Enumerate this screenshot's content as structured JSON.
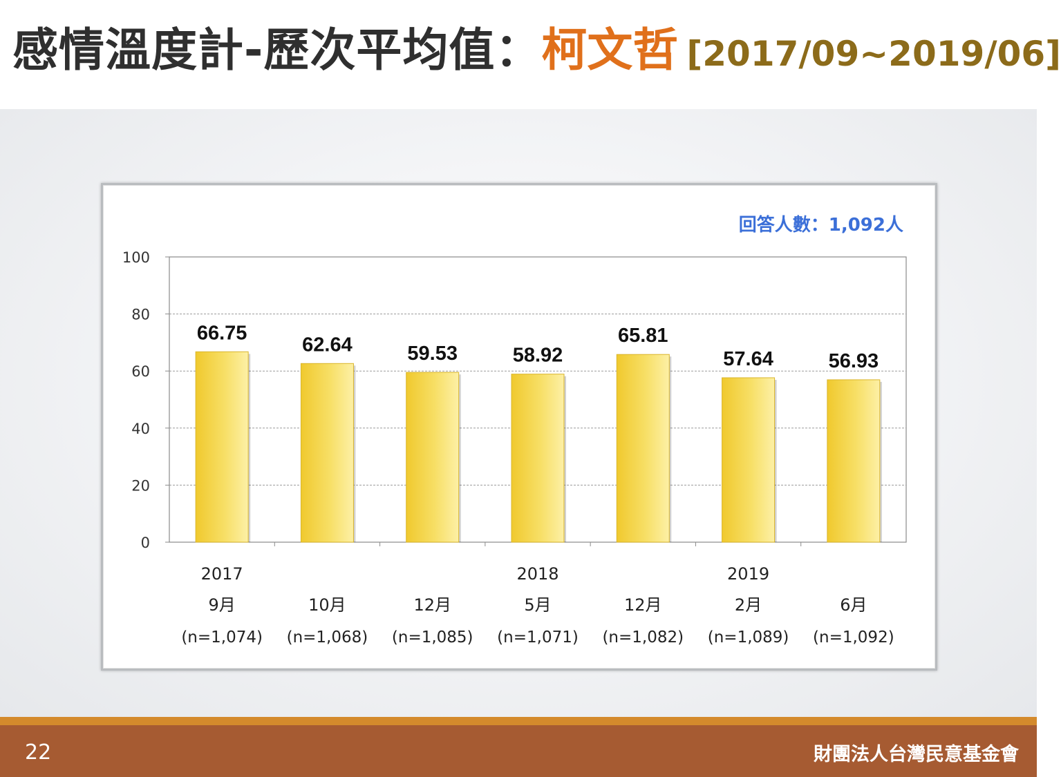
{
  "slide": {
    "title_main": "感情溫度計-歷次平均值：",
    "title_name": "柯文哲",
    "title_range": "[2017/09~2019/06]",
    "page_number": "22",
    "organization": "財團法人台灣民意基金會"
  },
  "colors": {
    "title_text": "#2f2f2f",
    "title_name": "#e0701b",
    "title_range": "#8c6b1a",
    "bar_light": "#fdf0a6",
    "bar_dark": "#f0c92e",
    "respondents_text": "#3b6fd8",
    "footer": "#a65b32",
    "footer_strip": "#d48a2c"
  },
  "chart_data": {
    "type": "bar",
    "title": "",
    "xlabel": "",
    "ylabel": "",
    "ylim": [
      0,
      100
    ],
    "yticks": [
      0,
      20,
      40,
      60,
      80,
      100
    ],
    "grid": true,
    "annotation": "回答人數：1,092人",
    "categories": [
      {
        "year": "2017",
        "month": "9月",
        "n": "(n=1,074)"
      },
      {
        "year": "",
        "month": "10月",
        "n": "(n=1,068)"
      },
      {
        "year": "",
        "month": "12月",
        "n": "(n=1,085)"
      },
      {
        "year": "2018",
        "month": "5月",
        "n": "(n=1,071)"
      },
      {
        "year": "",
        "month": "12月",
        "n": "(n=1,082)"
      },
      {
        "year": "2019",
        "month": "2月",
        "n": "(n=1,089)"
      },
      {
        "year": "",
        "month": "6月",
        "n": "(n=1,092)"
      }
    ],
    "values": [
      66.75,
      62.64,
      59.53,
      58.92,
      65.81,
      57.64,
      56.93
    ],
    "value_labels": [
      "66.75",
      "62.64",
      "59.53",
      "58.92",
      "65.81",
      "57.64",
      "56.93"
    ]
  }
}
